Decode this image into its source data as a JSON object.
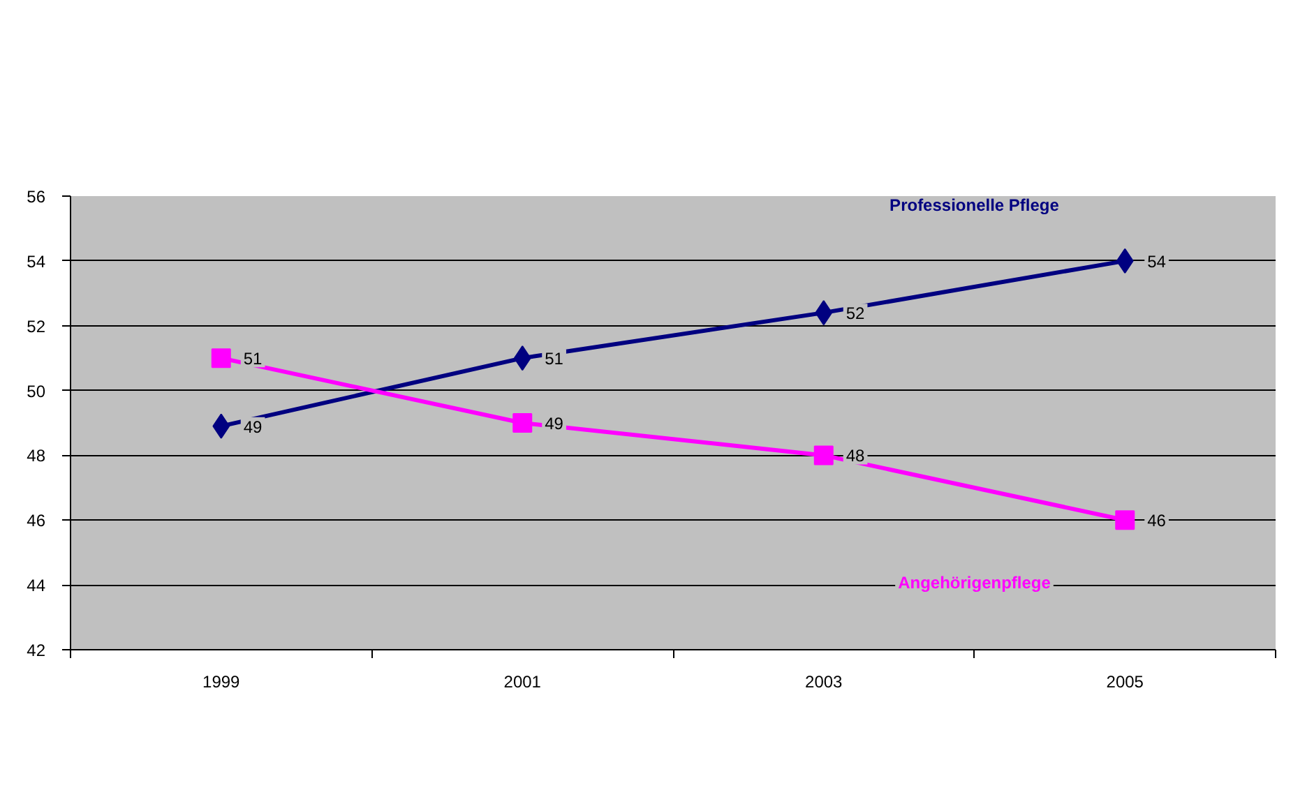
{
  "chart_data": {
    "type": "line",
    "categories": [
      "1999",
      "2001",
      "2003",
      "2005"
    ],
    "ylim": [
      42,
      56
    ],
    "yticks": [
      42,
      44,
      46,
      48,
      50,
      52,
      54,
      56
    ],
    "grid": "y",
    "legend": false,
    "series": [
      {
        "name": "Professionelle Pflege",
        "color": "#000080",
        "marker": "diamond",
        "values": [
          48.9,
          51,
          52.4,
          54
        ],
        "value_labels": [
          "49",
          "51",
          "52",
          "54"
        ]
      },
      {
        "name": "Angehörigenpflege",
        "color": "#ff00ff",
        "marker": "square",
        "values": [
          51,
          49,
          48,
          46
        ],
        "value_labels": [
          "51",
          "49",
          "48",
          "46"
        ]
      }
    ]
  }
}
